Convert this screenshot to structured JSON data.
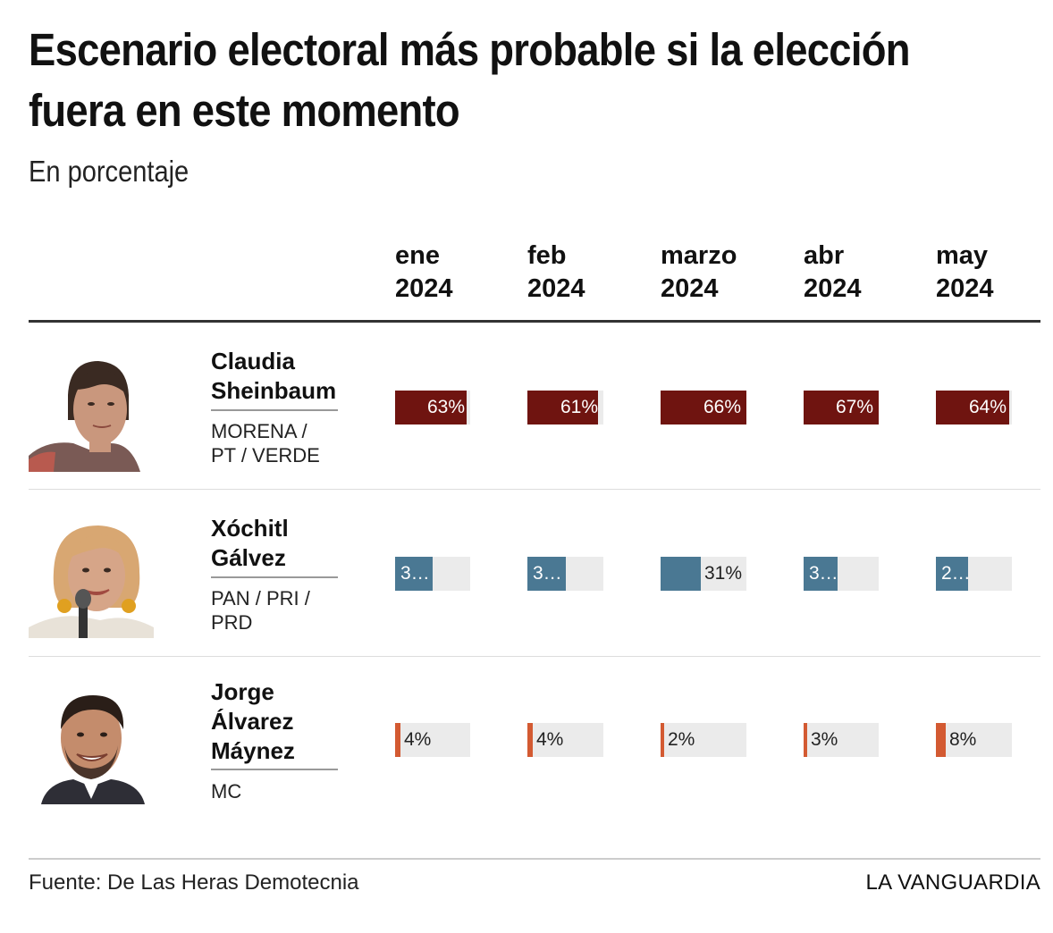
{
  "title": "Escenario electoral más probable si la elección fuera en este momento",
  "subtitle": "En porcentaje",
  "source": "Fuente: De Las Heras Demotecnia",
  "brand": "LA VANGUARDIA",
  "colors": {
    "sheinbaum": "#6f1410",
    "galvez": "#4a7893",
    "maynez": "#d35a32",
    "cell_bg": "#ebebeb"
  },
  "chart_data": {
    "type": "table",
    "title": "Escenario electoral más probable si la elección fuera en este momento",
    "subtitle": "En porcentaje",
    "columns": [
      {
        "line1": "ene",
        "line2": "2024"
      },
      {
        "line1": "feb",
        "line2": "2024"
      },
      {
        "line1": "marzo",
        "line2": "2024"
      },
      {
        "line1": "abr",
        "line2": "2024"
      },
      {
        "line1": "may",
        "line2": "2024"
      }
    ],
    "x": [
      "ene 2024",
      "feb 2024",
      "marzo 2024",
      "abr 2024",
      "may 2024"
    ],
    "series": [
      {
        "name_lines": [
          "Claudia",
          "Sheinbaum"
        ],
        "party_lines": [
          "MORENA /",
          "PT / VERDE"
        ],
        "photo_icon": "woman-portrait-icon",
        "color_key": "sheinbaum",
        "values": [
          63,
          61,
          66,
          67,
          64
        ],
        "labels": [
          "63%",
          "61%",
          "66%",
          "67%",
          "64%"
        ]
      },
      {
        "name_lines": [
          "Xóchitl",
          "Gálvez"
        ],
        "party_lines": [
          "PAN / PRI /",
          "PRD"
        ],
        "photo_icon": "woman-portrait-icon",
        "color_key": "galvez",
        "values": [
          33,
          33,
          31,
          30,
          28
        ],
        "labels": [
          "3…",
          "3…",
          "31%",
          "3…",
          "2…"
        ]
      },
      {
        "name_lines": [
          "Jorge",
          "Álvarez",
          "Máynez"
        ],
        "party_lines": [
          "MC"
        ],
        "photo_icon": "man-portrait-icon",
        "color_key": "maynez",
        "values": [
          4,
          4,
          2,
          3,
          8
        ],
        "labels": [
          "4%",
          "4%",
          "2%",
          "3%",
          "8%"
        ]
      }
    ],
    "scale_max": 66,
    "grid": false,
    "legend": "none"
  }
}
